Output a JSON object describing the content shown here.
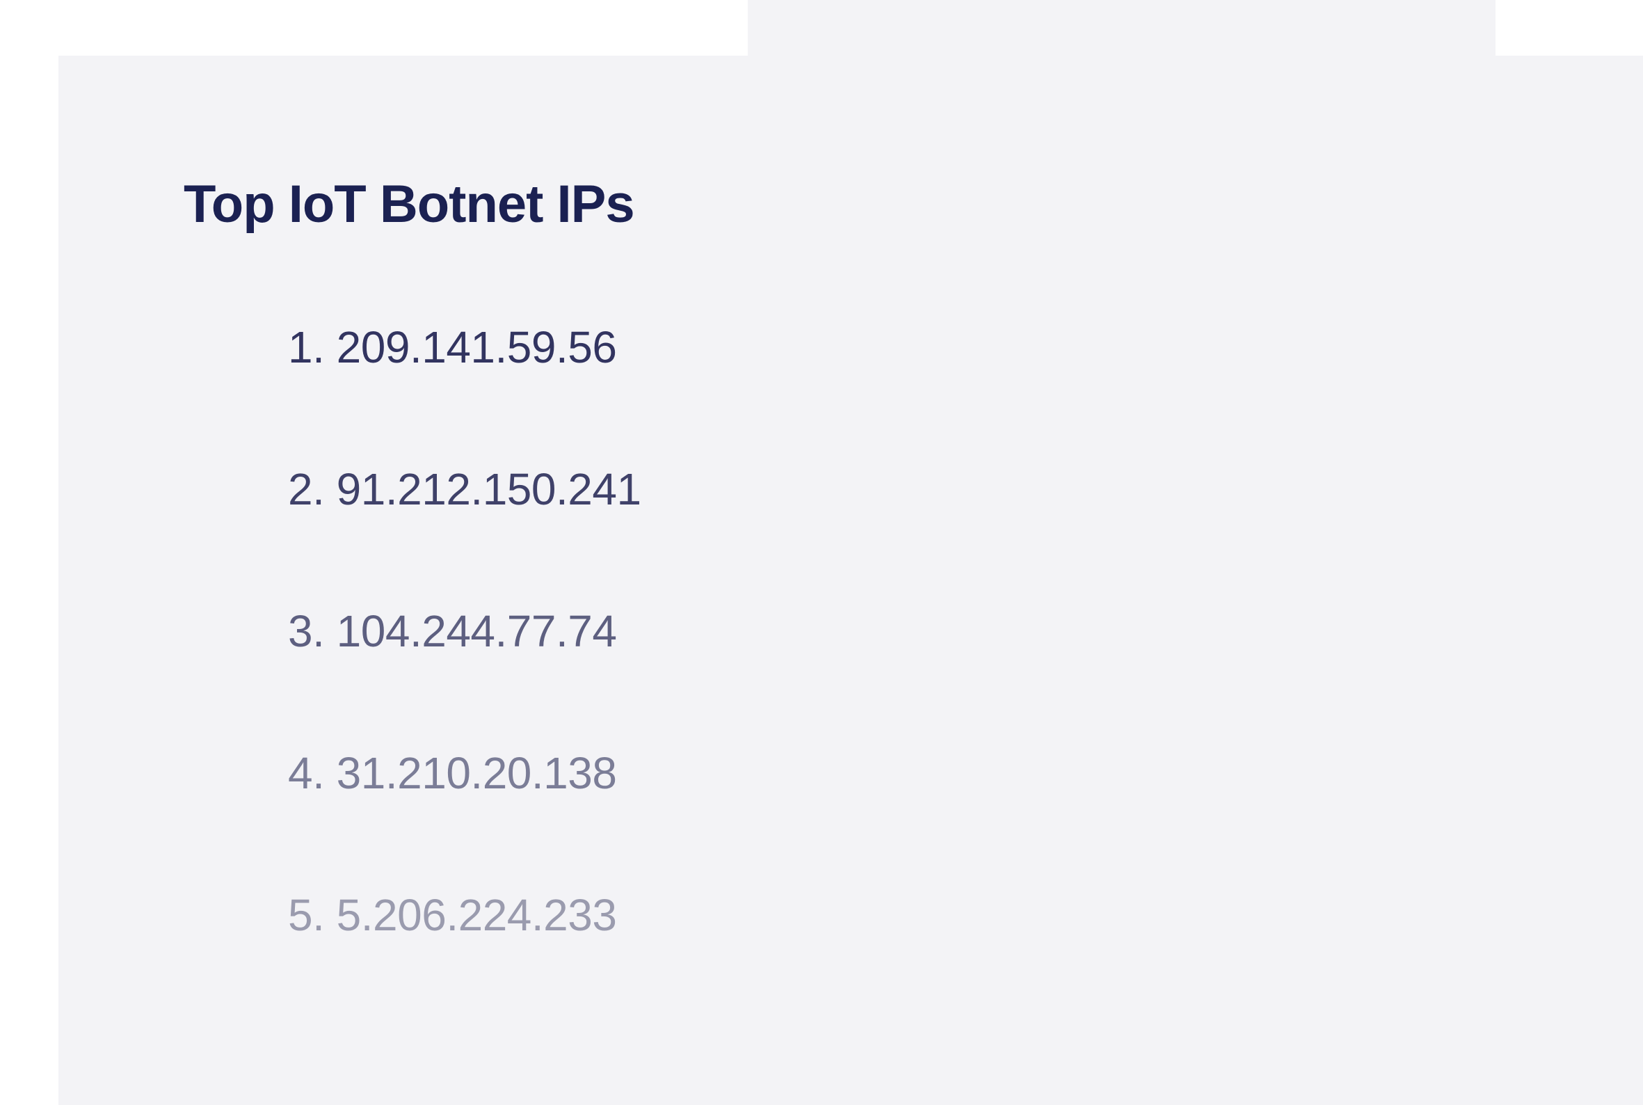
{
  "card": {
    "title": "Top IoT Botnet  IPs",
    "background_color": "#f3f3f6",
    "title_color": "#1b2152",
    "title_fontsize": 76,
    "item_fontsize": 64
  },
  "ips": [
    {
      "rank": "1",
      "address": "209.141.59.56",
      "color": "#323460"
    },
    {
      "rank": "2",
      "address": "91.212.150.241",
      "color": "#3f4169"
    },
    {
      "rank": "3",
      "address": "104.244.77.74",
      "color": "#5d5f80"
    },
    {
      "rank": "4",
      "address": "31.210.20.138",
      "color": "#7b7d97"
    },
    {
      "rank": "5",
      "address": "5.206.224.233",
      "color": "#9a9bae"
    }
  ]
}
